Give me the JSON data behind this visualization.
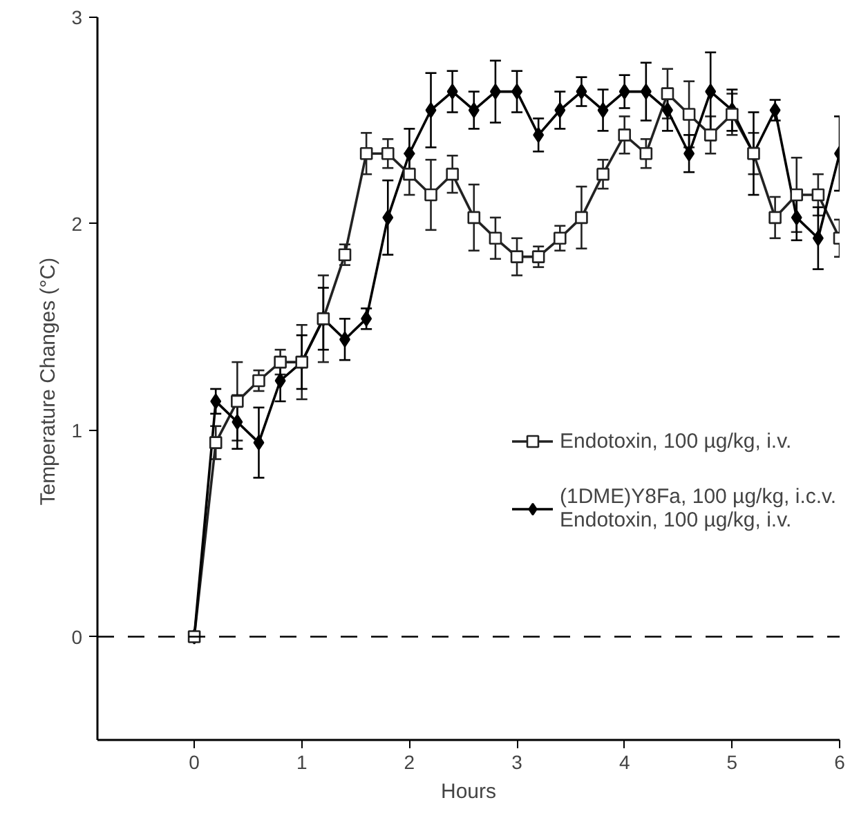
{
  "chart_data": {
    "type": "line",
    "xlabel": "Hours",
    "ylabel": "Temperature  Changes (°C)",
    "xlim": [
      -0.9,
      6.0
    ],
    "ylim": [
      -0.5,
      3.0
    ],
    "xticks": [
      0,
      1,
      2,
      3,
      4,
      5,
      6
    ],
    "yticks": [
      0,
      1,
      2,
      3
    ],
    "x": [
      0,
      0.2,
      0.4,
      0.6,
      0.8,
      1.0,
      1.2,
      1.4,
      1.6,
      1.8,
      2.0,
      2.2,
      2.4,
      2.6,
      2.8,
      3.0,
      3.2,
      3.4,
      3.6,
      3.8,
      4.0,
      4.2,
      4.4,
      4.6,
      4.8,
      5.0,
      5.2,
      5.4,
      5.6,
      5.8,
      6.0
    ],
    "series": [
      {
        "name": "Endotoxin, 100 µg/kg, i.v.",
        "color": "#222222",
        "marker": "square",
        "values": [
          0,
          0.94,
          1.14,
          1.24,
          1.33,
          1.33,
          1.54,
          1.85,
          2.34,
          2.34,
          2.24,
          2.14,
          2.24,
          2.03,
          1.93,
          1.84,
          1.84,
          1.93,
          2.03,
          2.24,
          2.43,
          2.34,
          2.63,
          2.53,
          2.43,
          2.53,
          2.34,
          2.03,
          2.14,
          2.14,
          1.93
        ],
        "errors": [
          null,
          0.08,
          0.19,
          0.05,
          0.06,
          0.18,
          0.21,
          0.05,
          0.1,
          0.07,
          0.1,
          0.17,
          0.09,
          0.16,
          0.1,
          0.09,
          0.05,
          0.06,
          0.15,
          0.07,
          0.09,
          0.07,
          0.12,
          0.16,
          0.09,
          0.1,
          0.1,
          0.1,
          0.18,
          0.1,
          0.09
        ]
      },
      {
        "name": "(1DME)Y8Fa, 100 µg/kg, i.c.v.\nEndotoxin, 100 µg/kg, i.v.",
        "color": "#000000",
        "marker": "diamond",
        "values": [
          0,
          1.14,
          1.04,
          0.94,
          1.24,
          1.33,
          1.54,
          1.44,
          1.54,
          2.03,
          2.34,
          2.55,
          2.64,
          2.55,
          2.64,
          2.64,
          2.43,
          2.55,
          2.64,
          2.55,
          2.64,
          2.64,
          2.55,
          2.34,
          2.64,
          2.55,
          2.34,
          2.55,
          2.03,
          1.93,
          2.34
        ],
        "errors": [
          null,
          0.06,
          0.13,
          0.17,
          0.1,
          0.13,
          0.15,
          0.1,
          0.05,
          0.18,
          0.12,
          0.18,
          0.1,
          0.09,
          0.15,
          0.1,
          0.08,
          0.09,
          0.07,
          0.1,
          0.08,
          0.14,
          0.1,
          0.09,
          0.19,
          0.1,
          0.2,
          0.05,
          0.11,
          0.15,
          0.18
        ]
      }
    ],
    "ref_lines": [
      {
        "axis": "y",
        "value": 0,
        "line_style": "dashed",
        "color": "#000000"
      }
    ],
    "legend": "right",
    "grid": false,
    "line_style": "solid"
  }
}
